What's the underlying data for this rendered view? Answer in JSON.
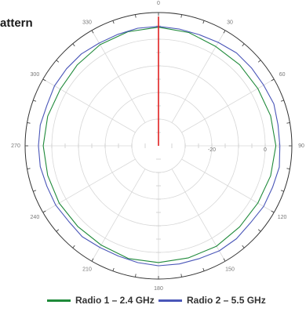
{
  "title_visible": "attern",
  "chart_data": {
    "type": "polar-line",
    "angle_unit": "degrees",
    "angle_ticks": [
      "0",
      "30",
      "60",
      "90",
      "120",
      "150",
      "180",
      "210",
      "240",
      "270",
      "300",
      "330"
    ],
    "radial_tick_labels": [
      "-20",
      "0"
    ],
    "radial_range": [
      -40,
      10
    ],
    "grid": true,
    "legend_position": "bottom",
    "series": [
      {
        "name": "Radio 1 – 2.4 GHz",
        "color": "#1f8a3a",
        "angles": [
          0,
          15,
          30,
          45,
          60,
          75,
          90,
          105,
          120,
          135,
          150,
          165,
          180,
          195,
          210,
          225,
          240,
          255,
          270,
          285,
          300,
          315,
          330,
          345,
          360
        ],
        "values": [
          4.5,
          4.0,
          3.0,
          3.0,
          3.0,
          3.5,
          4.0,
          3.5,
          3.0,
          3.0,
          3.5,
          3.5,
          3.8,
          3.8,
          3.0,
          2.8,
          3.0,
          3.0,
          3.2,
          3.0,
          2.5,
          3.0,
          3.8,
          4.3,
          4.5
        ]
      },
      {
        "name": "Radio 2 – 5.5 GHz",
        "color": "#4a56b8",
        "angles": [
          0,
          10,
          20,
          30,
          40,
          50,
          60,
          70,
          80,
          90,
          100,
          110,
          120,
          130,
          140,
          150,
          160,
          170,
          180,
          190,
          200,
          210,
          220,
          230,
          240,
          250,
          260,
          270,
          280,
          290,
          300,
          310,
          320,
          330,
          340,
          350,
          360
        ],
        "values": [
          4.8,
          4.5,
          4.4,
          4.8,
          5.5,
          5.5,
          5.5,
          6.0,
          5.5,
          5.5,
          6.0,
          5.5,
          5.5,
          5.0,
          5.5,
          5.5,
          5.0,
          5.0,
          5.0,
          4.5,
          4.0,
          4.0,
          4.5,
          4.0,
          4.5,
          4.5,
          5.0,
          5.0,
          5.0,
          4.5,
          5.0,
          5.0,
          5.0,
          4.5,
          4.5,
          4.8,
          4.8
        ]
      },
      {
        "name": "",
        "color": "#e02020",
        "angles": [
          0
        ],
        "values": [
          8.5
        ]
      }
    ]
  },
  "legend": [
    {
      "label": "Radio 1 – 2.4 GHz",
      "color": "#1f8a3a"
    },
    {
      "label": "Radio 2 – 5.5 GHz",
      "color": "#4a56b8"
    }
  ]
}
